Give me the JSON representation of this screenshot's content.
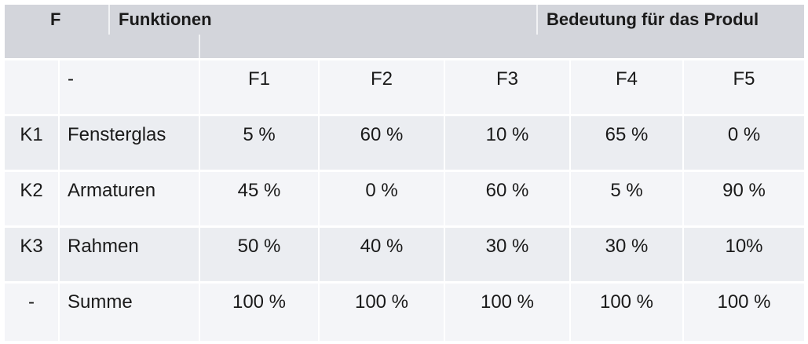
{
  "header": {
    "col1": "F",
    "col2": "Funktionen",
    "col3": "Bedeutung für das Produl"
  },
  "columns": [
    "-",
    "F1",
    "F2",
    "F3",
    "F4",
    "F5"
  ],
  "rows": [
    {
      "code": "K1",
      "name": "Fensterglas",
      "values": [
        "5 %",
        "60 %",
        "10 %",
        "65 %",
        "0 %"
      ]
    },
    {
      "code": "K2",
      "name": "Armaturen",
      "values": [
        "45 %",
        "0 %",
        "60 %",
        "5 %",
        "90 %"
      ]
    },
    {
      "code": "K3",
      "name": "Rahmen",
      "values": [
        "50 %",
        "40 %",
        "30 %",
        "30 %",
        "10%"
      ]
    },
    {
      "code": "-",
      "name": "Summe",
      "values": [
        "100 %",
        "100 %",
        "100 %",
        "100 %",
        "100 %"
      ]
    }
  ]
}
